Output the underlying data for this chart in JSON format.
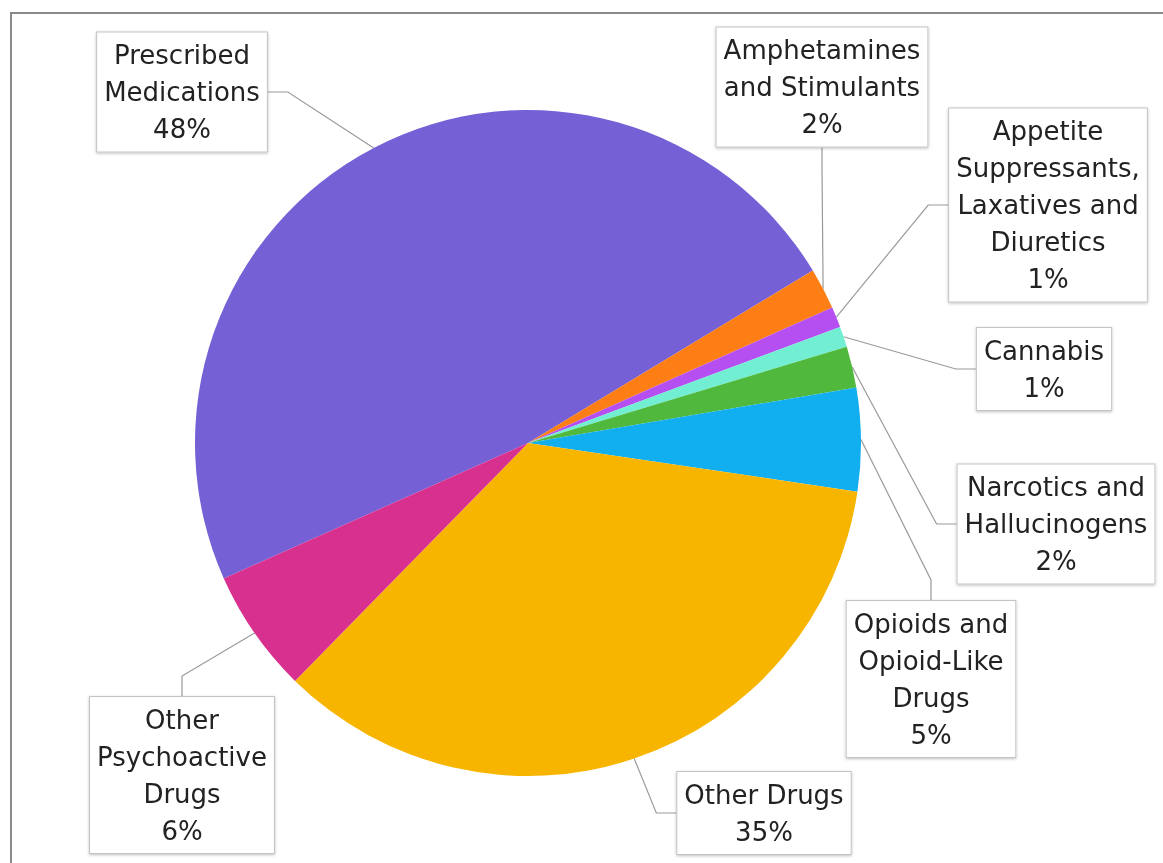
{
  "chart_data": {
    "type": "pie",
    "categories": [
      "Prescribed Medications",
      "Amphetamines and Stimulants",
      "Appetite Suppressants, Laxatives and Diuretics",
      "Cannabis",
      "Narcotics and Hallucinogens",
      "Opioids and Opioid-Like Drugs",
      "Other Drugs",
      "Other Psychoactive Drugs"
    ],
    "values": [
      48,
      2,
      1,
      1,
      2,
      5,
      35,
      6
    ],
    "value_labels": [
      "48%",
      "2%",
      "1%",
      "1%",
      "2%",
      "5%",
      "35%",
      "6%"
    ],
    "colors": [
      "#7560d6",
      "#fd7e14",
      "#b64ff2",
      "#72eed2",
      "#50b83c",
      "#11aef0",
      "#f8b500",
      "#d8308f"
    ]
  }
}
